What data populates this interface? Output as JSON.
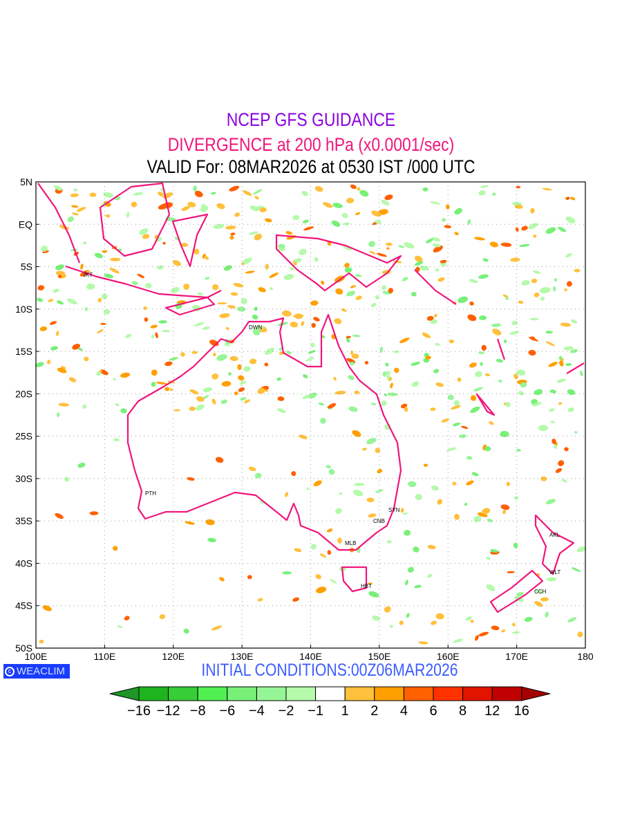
{
  "title": {
    "line1": "NCEP GFS GUIDANCE",
    "line2": "DIVERGENCE at 200 hPa (x0.0001/sec)",
    "line3": "VALID For: 08MAR2026 at 0530 IST /000 UTC"
  },
  "axes": {
    "lon_labels": [
      "100E",
      "110E",
      "120E",
      "130E",
      "140E",
      "150E",
      "160E",
      "170E",
      "180"
    ],
    "lat_labels": [
      "5N",
      "EQ",
      "5S",
      "10S",
      "15S",
      "20S",
      "25S",
      "30S",
      "35S",
      "40S",
      "45S",
      "50S"
    ]
  },
  "cities": [
    {
      "code": "JKT"
    },
    {
      "code": "DWN"
    },
    {
      "code": "PTH"
    },
    {
      "code": "SYN"
    },
    {
      "code": "CNB"
    },
    {
      "code": "MLB"
    },
    {
      "code": "HBT"
    },
    {
      "code": "AKL"
    },
    {
      "code": "WLT"
    },
    {
      "code": "CCH"
    }
  ],
  "logo": {
    "text": "WEACLIM",
    "icon": "copyright-icon"
  },
  "initial_conditions": "INITIAL CONDITIONS:00Z06MAR2026",
  "colorbar": {
    "labels": [
      "−16",
      "−12",
      "−8",
      "−6",
      "−4",
      "−2",
      "−1",
      "1",
      "2",
      "4",
      "6",
      "8",
      "12",
      "16"
    ],
    "colors": [
      "#1eb41e",
      "#37cd37",
      "#50f050",
      "#78f078",
      "#96f596",
      "#b4faaa",
      "#ffffff",
      "#ffc03c",
      "#ffa000",
      "#ff6000",
      "#ff3200",
      "#e11400",
      "#c00000"
    ],
    "low_arrow_color": "#1e9628",
    "high_arrow_color": "#a50000"
  },
  "coast_color": "#f0157a"
}
